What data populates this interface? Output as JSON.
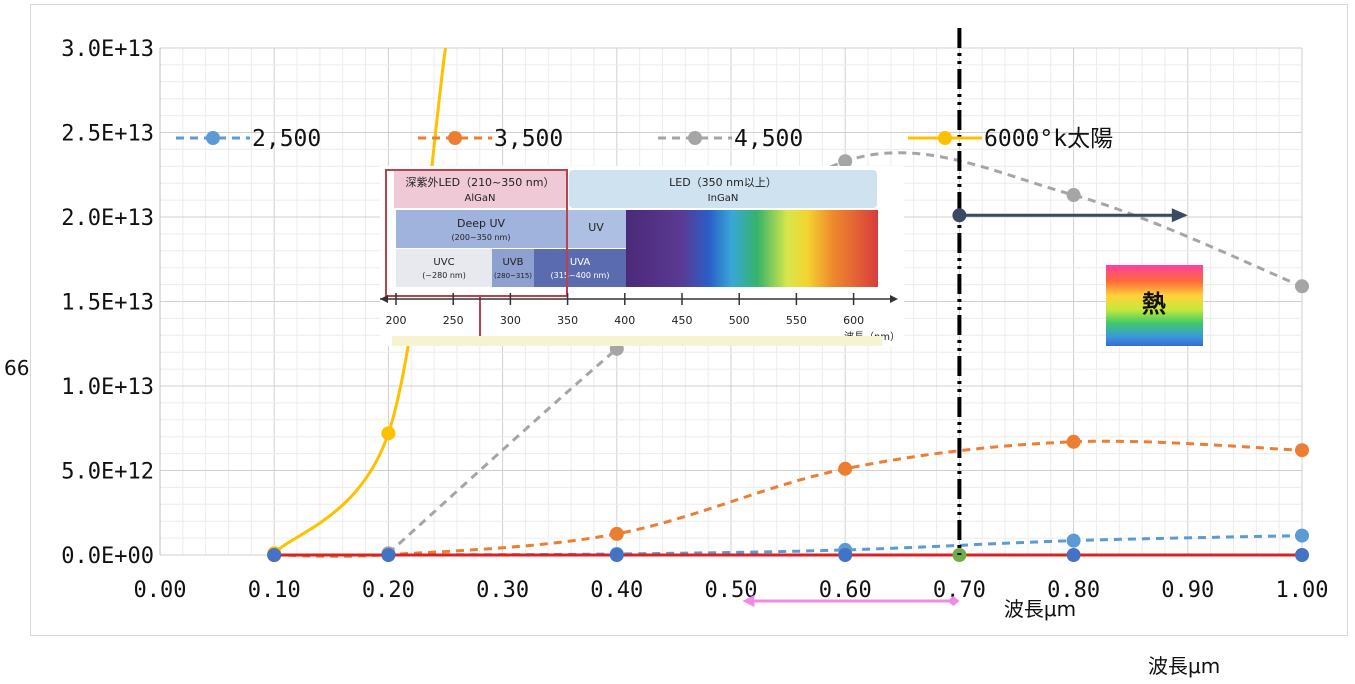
{
  "chart_data": {
    "type": "line",
    "xlabel": "波長μm",
    "xlabel_outer": "波長μm",
    "ylabel_stub": "66",
    "xlim": [
      0.0,
      1.0
    ],
    "ylim": [
      0,
      30000000000000
    ],
    "x_ticks": [
      "0.00",
      "0.10",
      "0.20",
      "0.30",
      "0.40",
      "0.50",
      "0.60",
      "0.70",
      "0.80",
      "0.90",
      "1.00"
    ],
    "y_ticks": [
      "0.0E+00",
      "5.0E+12",
      "1.0E+13",
      "1.5E+13",
      "2.0E+13",
      "2.5E+13",
      "3.0E+13"
    ],
    "grid": true,
    "legend_position": "top",
    "series": [
      {
        "name": "2,500",
        "color": "#5b9bd5",
        "dash": "8,6",
        "x": [
          0.1,
          0.2,
          0.4,
          0.6,
          0.8,
          1.0
        ],
        "y": [
          0,
          5000000000,
          60000000000,
          300000000000,
          850000000000,
          1150000000000
        ]
      },
      {
        "name": "3,500",
        "color": "#ed7d31",
        "dash": "8,6",
        "x": [
          0.1,
          0.2,
          0.4,
          0.6,
          0.8,
          1.0
        ],
        "y": [
          0,
          20000000000,
          1250000000000,
          5100000000000,
          6700000000000,
          6200000000000
        ]
      },
      {
        "name": "4,500",
        "color": "#a5a5a5",
        "dash": "8,6",
        "x": [
          0.2,
          0.4,
          0.6,
          0.8,
          1.0
        ],
        "y": [
          100000000000,
          12200000000000,
          23300000000000,
          21300000000000,
          15900000000000
        ]
      },
      {
        "name": "6000°k太陽",
        "color": "#ffc000",
        "dash": "",
        "x": [
          0.1,
          0.2,
          0.25
        ],
        "y": [
          100000000000,
          7200000000000,
          30000000000000
        ]
      }
    ],
    "baseline_points": {
      "color": "#4472c4",
      "x": [
        0.1,
        0.2,
        0.4,
        0.6,
        0.7,
        0.8,
        1.0
      ],
      "green_at": 0.7
    },
    "annotations": {
      "vertical_line_x": 0.7,
      "arrow": {
        "from_x": 0.7,
        "to_x": 0.9,
        "y": 20100000000000
      },
      "pink_arrow": {
        "from_x": 0.51,
        "to_x": 0.7
      },
      "heat_label": "熱",
      "inner_xlabel": "波長μm"
    },
    "inset": {
      "deep_uv_led_title": "深紫外LED（210~350 nm）",
      "deep_uv_led_material": "AlGaN",
      "led_title": "LED（350 nm以上）",
      "led_material": "InGaN",
      "deep_uv": "Deep UV",
      "deep_uv_range": "(200~350 nm)",
      "uv": "UV",
      "uvc": "UVC",
      "uvc_range": "(~280 nm)",
      "uvb": "UVB",
      "uvb_range": "(280~315)",
      "uva": "UVA",
      "uva_range": "(315~400 nm)",
      "axis_ticks": [
        "200",
        "250",
        "300",
        "350",
        "400",
        "450",
        "500",
        "550",
        "600"
      ],
      "axis_unit": "波長（nm）"
    }
  }
}
